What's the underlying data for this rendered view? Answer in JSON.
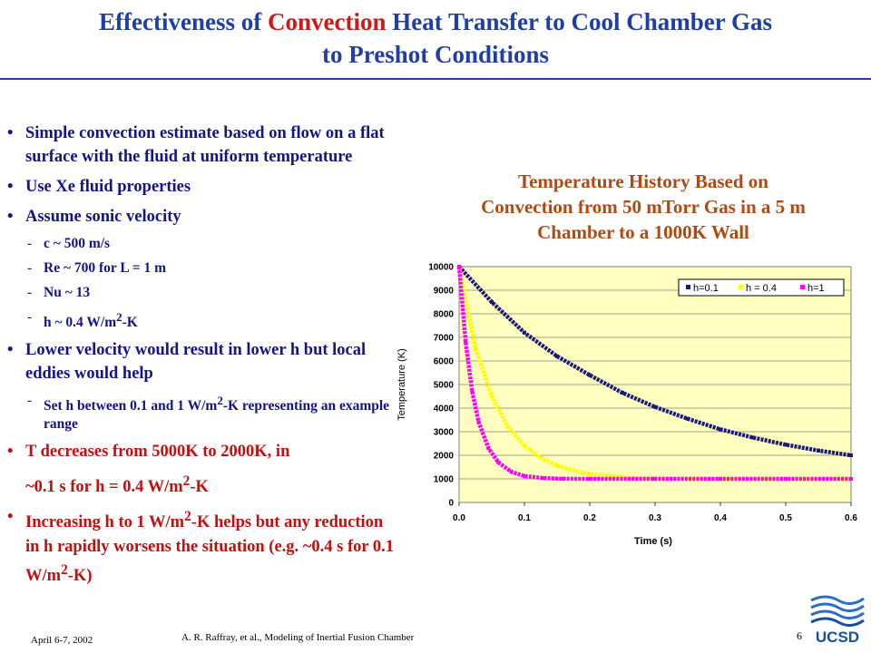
{
  "title": {
    "part1": "Effectiveness of ",
    "highlight": "Convection",
    "part2": " Heat Transfer to Cool Chamber Gas",
    "line2": "to Preshot Conditions"
  },
  "bullets": {
    "b1": "Simple convection estimate based on flow on a flat surface with the fluid at uniform temperature",
    "b2": "Use Xe fluid properties",
    "b3": "Assume sonic velocity",
    "b3_sub1": "c ~ 500 m/s",
    "b3_sub2": "Re ~ 700 for L = 1 m",
    "b3_sub3": "Nu ~ 13",
    "b3_sub4_pre": "h ~ 0.4 W/m",
    "b3_sub4_sup": "2",
    "b3_sub4_post": "-K",
    "b4": "Lower velocity would result in lower h but local eddies would help",
    "b4_sub1_pre": "Set h between 0.1 and 1 W/m",
    "b4_sub1_sup": "2",
    "b4_sub1_post": "-K representing an example range",
    "b5_line1": "T decreases from 5000K to 2000K, in",
    "b5_line2_pre": "~0.1 s for h = 0.4 W/m",
    "b5_line2_sup": "2",
    "b5_line2_post": "-K",
    "b6_pre": "Increasing h to 1 W/m",
    "b6_sup1": "2",
    "b6_mid": "-K helps but any reduction in h rapidly worsens the situation (e.g. ~0.4 s for 0.1 W/m",
    "b6_sup2": "2",
    "b6_post": "-K)"
  },
  "chart_title": {
    "line1": "Temperature History Based on",
    "line2": "Convection from 50 mTorr Gas in a 5 m",
    "line3": "Chamber to a 1000K Wall"
  },
  "chart_data": {
    "type": "line",
    "xlabel": "Time (s)",
    "ylabel": "Temperature (K)",
    "xlim": [
      0,
      0.6
    ],
    "ylim": [
      0,
      10000
    ],
    "x_ticks": [
      "0.0",
      "0.1",
      "0.2",
      "0.3",
      "0.4",
      "0.5",
      "0.6"
    ],
    "y_ticks": [
      "0",
      "1000",
      "2000",
      "3000",
      "4000",
      "5000",
      "6000",
      "7000",
      "8000",
      "9000",
      "10000"
    ],
    "legend_position": "top-right",
    "grid": true,
    "plot_bg": "#ffffc0",
    "series": [
      {
        "name": "h=0.1",
        "color": "#1a1a7a",
        "x": [
          0,
          0.05,
          0.1,
          0.15,
          0.2,
          0.25,
          0.3,
          0.35,
          0.4,
          0.45,
          0.5,
          0.55,
          0.6
        ],
        "y": [
          10000,
          8500,
          7200,
          6200,
          5400,
          4650,
          4050,
          3550,
          3100,
          2750,
          2450,
          2200,
          2000
        ]
      },
      {
        "name": "h = 0.4",
        "color": "#ffff00",
        "x": [
          0,
          0.025,
          0.05,
          0.075,
          0.1,
          0.125,
          0.15,
          0.2,
          0.25,
          0.3,
          0.4,
          0.5,
          0.6
        ],
        "y": [
          10000,
          6500,
          4500,
          3200,
          2400,
          1900,
          1550,
          1200,
          1070,
          1020,
          1000,
          1000,
          1000
        ]
      },
      {
        "name": "h=1",
        "color": "#ff00ff",
        "x": [
          0,
          0.01,
          0.02,
          0.03,
          0.045,
          0.06,
          0.08,
          0.1,
          0.13,
          0.16,
          0.2,
          0.3,
          0.4,
          0.5,
          0.6
        ],
        "y": [
          10000,
          6800,
          4700,
          3400,
          2300,
          1700,
          1300,
          1120,
          1030,
          1005,
          1000,
          1000,
          1000,
          1000,
          1000
        ]
      }
    ]
  },
  "footer": {
    "date": "April 6-7, 2002",
    "author": "A. R. Raffray, et al., Modeling of Inertial Fusion Chamber",
    "page": "6",
    "logo_text": "UCSD"
  }
}
